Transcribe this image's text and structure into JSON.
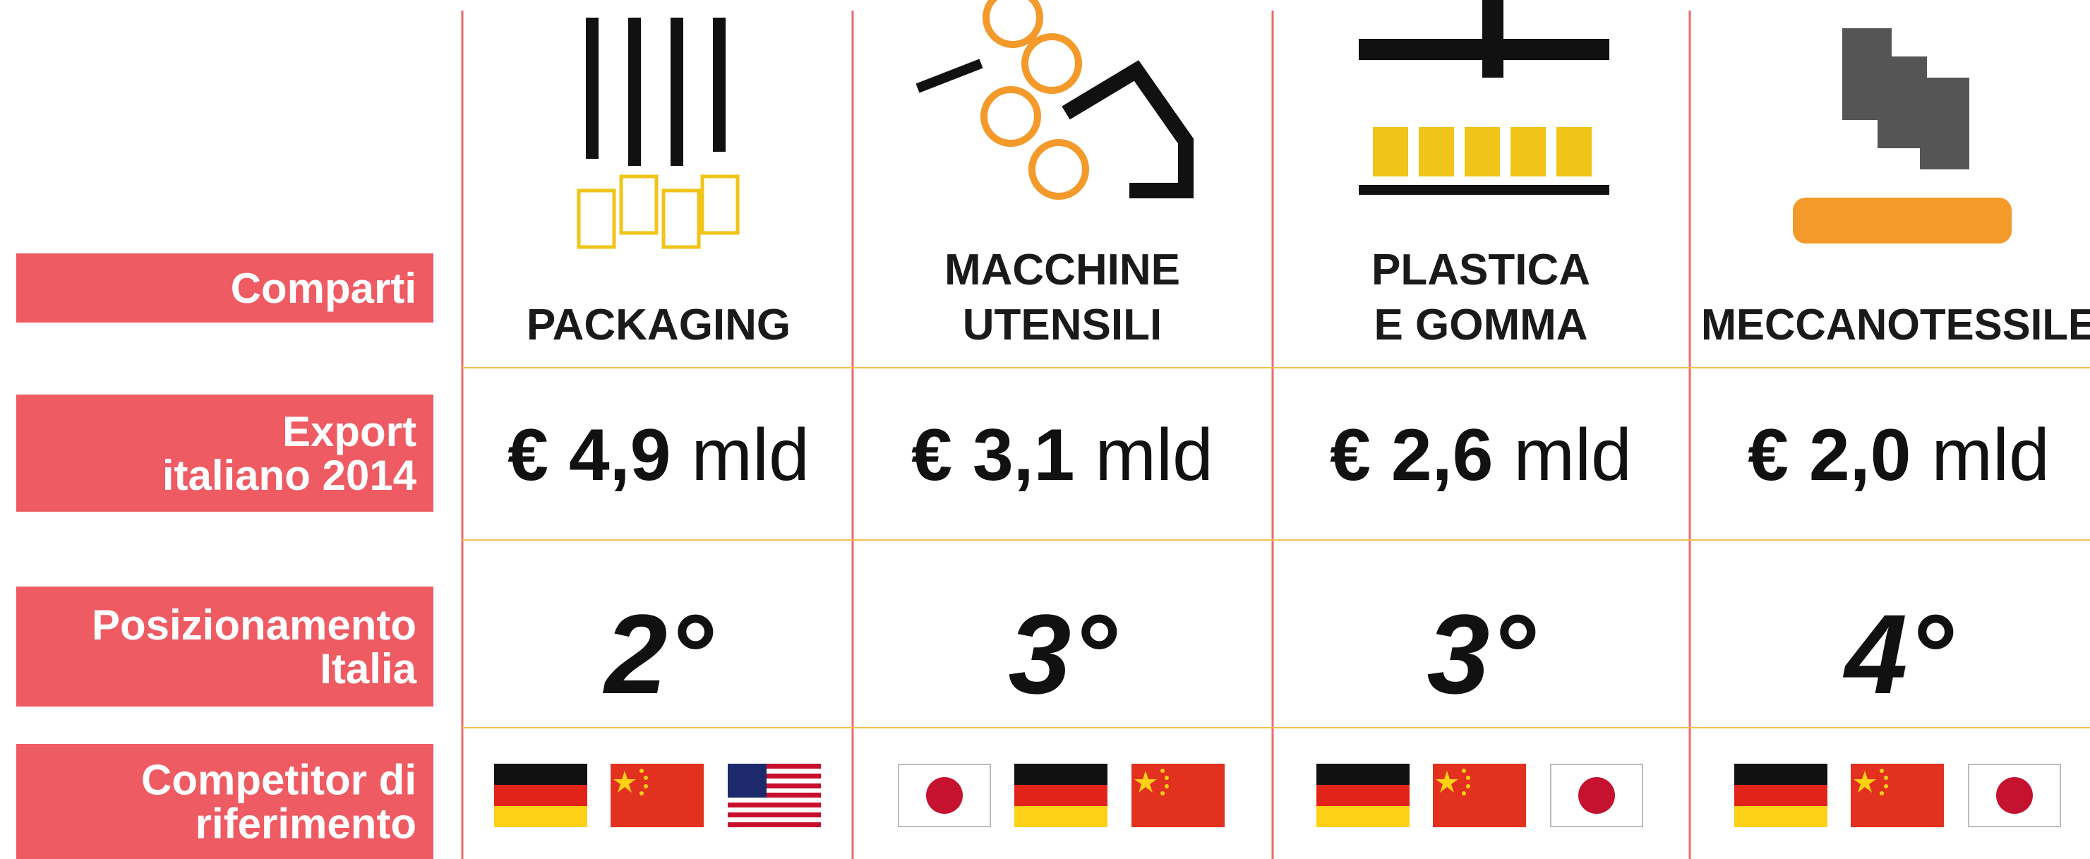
{
  "row_labels": [
    [
      "Comparti"
    ],
    [
      "Export",
      "italiano 2014"
    ],
    [
      "Posizionamento",
      "Italia"
    ],
    [
      "Competitor di",
      "riferimento"
    ]
  ],
  "columns": [
    {
      "name": [
        "PACKAGING"
      ],
      "export_amount": "€ 4,9",
      "export_unit": "mld",
      "rank": "2°"
    },
    {
      "name": [
        "MACCHINE",
        "UTENSILI"
      ],
      "export_amount": "€ 3,1",
      "export_unit": "mld",
      "rank": "3°"
    },
    {
      "name": [
        "PLASTICA",
        "E GOMMA"
      ],
      "export_amount": "€ 2,6",
      "export_unit": "mld",
      "rank": "3°"
    },
    {
      "name": [
        "MECCANOTESSILE"
      ],
      "export_amount": "€ 2,0",
      "export_unit": "mld",
      "rank": "4°"
    }
  ]
}
